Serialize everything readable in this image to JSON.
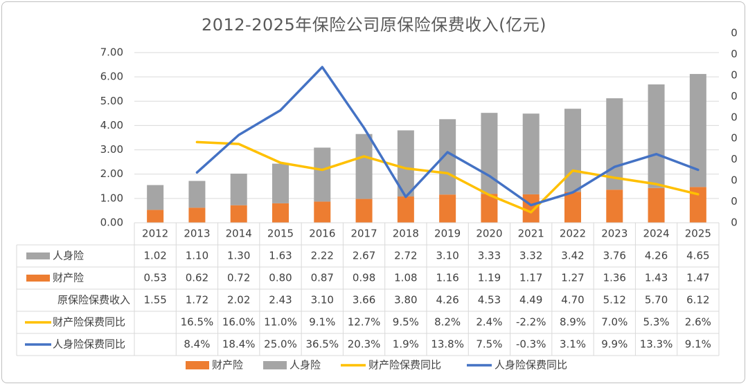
{
  "chart_data": {
    "type": "bar",
    "title": "2012-2025年保险公司原保险保费收入(亿元)",
    "categories": [
      "2012",
      "2013",
      "2014",
      "2015",
      "2016",
      "2017",
      "2018",
      "2019",
      "2020",
      "2021",
      "2022",
      "2023",
      "2024",
      "2025"
    ],
    "ylim": [
      0,
      7
    ],
    "y_ticks": [
      "0.00",
      "1.00",
      "2.00",
      "3.00",
      "4.00",
      "5.00",
      "6.00",
      "7.00"
    ],
    "y2_ticks": [
      "0",
      "0",
      "0",
      "0",
      "0",
      "0",
      "0",
      "0",
      "0",
      "0"
    ],
    "y2lim": [
      -0.05,
      0.4
    ],
    "grid": true,
    "legend_position": "bottom",
    "series": [
      {
        "name": "人身险",
        "type": "bar",
        "stack": "total",
        "color": "#a5a5a5",
        "values": [
          1.02,
          1.1,
          1.3,
          1.63,
          2.22,
          2.67,
          2.72,
          3.1,
          3.33,
          3.32,
          3.42,
          3.76,
          4.26,
          4.65
        ],
        "labels": [
          "1.02",
          "1.10",
          "1.30",
          "1.63",
          "2.22",
          "2.67",
          "2.72",
          "3.10",
          "3.33",
          "3.32",
          "3.42",
          "3.76",
          "4.26",
          "4.65"
        ]
      },
      {
        "name": "财产险",
        "type": "bar",
        "stack": "total",
        "color": "#ed7d31",
        "values": [
          0.53,
          0.62,
          0.72,
          0.8,
          0.87,
          0.98,
          1.08,
          1.16,
          1.19,
          1.17,
          1.27,
          1.36,
          1.43,
          1.47
        ],
        "labels": [
          "0.53",
          "0.62",
          "0.72",
          "0.80",
          "0.87",
          "0.98",
          "1.08",
          "1.16",
          "1.19",
          "1.17",
          "1.27",
          "1.36",
          "1.43",
          "1.47"
        ]
      },
      {
        "name": "原保险保费收入",
        "type": "total",
        "values": [
          1.55,
          1.72,
          2.02,
          2.43,
          3.1,
          3.66,
          3.8,
          4.26,
          4.53,
          4.49,
          4.7,
          5.12,
          5.7,
          6.12
        ],
        "labels": [
          "1.55",
          "1.72",
          "2.02",
          "2.43",
          "3.10",
          "3.66",
          "3.80",
          "4.26",
          "4.53",
          "4.49",
          "4.70",
          "5.12",
          "5.70",
          "6.12"
        ]
      },
      {
        "name": "财产险保费同比",
        "type": "line",
        "axis": "secondary",
        "color": "#ffc000",
        "values": [
          null,
          0.165,
          0.16,
          0.11,
          0.091,
          0.127,
          0.095,
          0.082,
          0.024,
          -0.022,
          0.089,
          0.07,
          0.053,
          0.026
        ],
        "labels": [
          "",
          "16.5%",
          "16.0%",
          "11.0%",
          "9.1%",
          "12.7%",
          "9.5%",
          "8.2%",
          "2.4%",
          "-2.2%",
          "8.9%",
          "7.0%",
          "5.3%",
          "2.6%"
        ]
      },
      {
        "name": "人身险保费同比",
        "type": "line",
        "axis": "secondary",
        "color": "#4472c4",
        "values": [
          null,
          0.084,
          0.184,
          0.25,
          0.365,
          0.203,
          0.019,
          0.138,
          0.075,
          -0.003,
          0.031,
          0.099,
          0.133,
          0.091
        ],
        "labels": [
          "",
          "8.4%",
          "18.4%",
          "25.0%",
          "36.5%",
          "20.3%",
          "1.9%",
          "13.8%",
          "7.5%",
          "-0.3%",
          "3.1%",
          "9.9%",
          "13.3%",
          "9.1%"
        ]
      }
    ]
  }
}
